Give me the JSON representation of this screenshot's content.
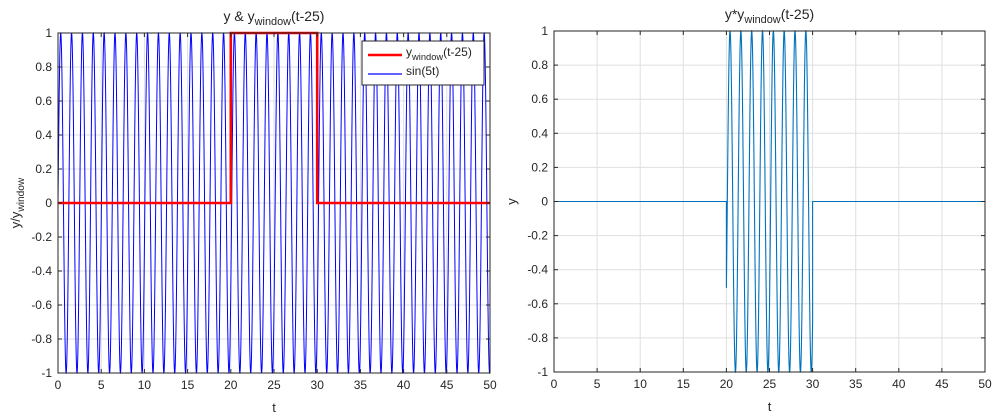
{
  "chart_data": [
    {
      "type": "line",
      "title": {
        "base": "y & y",
        "sub": "window",
        "tail": "(t-25)"
      },
      "xlabel": "t",
      "ylabel": {
        "base": "y/y",
        "sub": "window"
      },
      "xlim": [
        0,
        50
      ],
      "ylim": [
        -1,
        1
      ],
      "xticks": [
        0,
        5,
        10,
        15,
        20,
        25,
        30,
        35,
        40,
        45,
        50
      ],
      "yticks": [
        -1,
        -0.8,
        -0.6,
        -0.4,
        -0.2,
        0,
        0.2,
        0.4,
        0.6,
        0.8,
        1
      ],
      "grid": true,
      "legend_position": "top-right",
      "series": [
        {
          "name": {
            "base": "y",
            "sub": "window",
            "tail": "(t-25)"
          },
          "color": "#ff0000",
          "x": [
            0,
            20,
            20,
            30,
            30,
            50
          ],
          "y": [
            0,
            0,
            1,
            1,
            0,
            0
          ]
        },
        {
          "name": {
            "base": "sin(5t)",
            "sub": "",
            "tail": ""
          },
          "color": "#0000ff",
          "function": "sin",
          "frequency": 5,
          "x_range": [
            0,
            50
          ]
        }
      ]
    },
    {
      "type": "line",
      "title": {
        "base": "y*y",
        "sub": "window",
        "tail": "(t-25)"
      },
      "xlabel": "t",
      "ylabel": {
        "base": "y",
        "sub": "",
        "tail": ""
      },
      "xlim": [
        0,
        50
      ],
      "ylim": [
        -1,
        1
      ],
      "xticks": [
        0,
        5,
        10,
        15,
        20,
        25,
        30,
        35,
        40,
        45,
        50
      ],
      "yticks": [
        -1,
        -0.8,
        -0.6,
        -0.4,
        -0.2,
        0,
        0.2,
        0.4,
        0.6,
        0.8,
        1
      ],
      "grid": true,
      "series": [
        {
          "color": "#0072bd",
          "function": "sin_windowed",
          "frequency": 5,
          "window": [
            20,
            30
          ],
          "x_range": [
            0,
            50
          ]
        }
      ]
    }
  ]
}
